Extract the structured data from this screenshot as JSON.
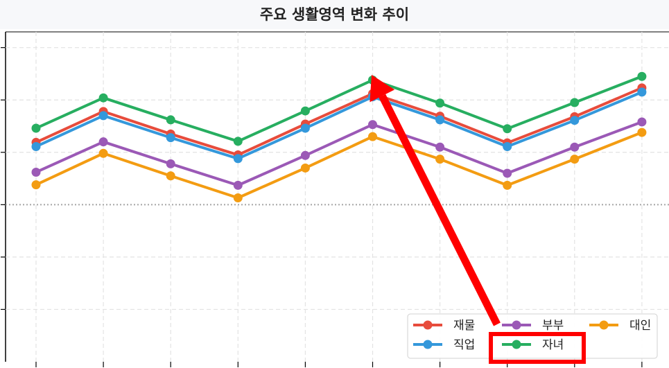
{
  "chart_data": {
    "type": "line",
    "title": "주요 생활영역 변화 추이",
    "x": [
      1,
      2,
      3,
      4,
      5,
      6,
      7,
      8,
      9,
      10
    ],
    "ylim": [
      0,
      6.3
    ],
    "baseline": 3,
    "grid": true,
    "legend_position": "bottom-right",
    "series": [
      {
        "name": "재물",
        "color": "#e74c3c",
        "values": [
          4.19,
          4.78,
          4.35,
          3.95,
          4.54,
          5.12,
          4.69,
          4.18,
          4.68,
          5.23
        ]
      },
      {
        "name": "부부",
        "color": "#9b59b6",
        "values": [
          3.62,
          4.2,
          3.78,
          3.37,
          3.94,
          4.53,
          4.1,
          3.6,
          4.1,
          4.58
        ]
      },
      {
        "name": "대인",
        "color": "#f39c12",
        "values": [
          3.38,
          3.98,
          3.55,
          3.13,
          3.7,
          4.3,
          3.87,
          3.37,
          3.87,
          4.38
        ]
      },
      {
        "name": "직업",
        "color": "#3498db",
        "values": [
          4.11,
          4.7,
          4.28,
          3.88,
          4.46,
          5.06,
          4.62,
          4.11,
          4.61,
          5.15
        ]
      },
      {
        "name": "자녀",
        "color": "#27ae60",
        "values": [
          4.46,
          5.04,
          4.62,
          4.21,
          4.79,
          5.38,
          4.94,
          4.45,
          4.95,
          5.45
        ]
      }
    ]
  },
  "colors": {
    "arrow": "#ff0000",
    "highlight_box": "#ff0000",
    "grid": "#e3e3e3",
    "baseline": "#aaaaaa"
  }
}
